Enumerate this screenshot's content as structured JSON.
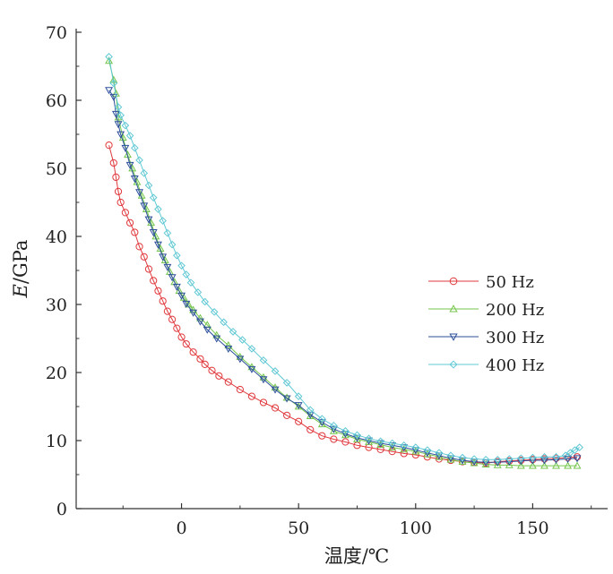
{
  "chart_data": {
    "type": "line",
    "xlabel": "温度/℃",
    "ylabel": {
      "italic": "E",
      "rest": "/GPa"
    },
    "xlim": [
      -45,
      182
    ],
    "ylim": [
      0,
      70
    ],
    "x_ticks": [
      0,
      50,
      100,
      150
    ],
    "y_ticks": [
      0,
      10,
      20,
      30,
      40,
      50,
      60,
      70
    ],
    "grid": false,
    "legend_position": "right",
    "series": [
      {
        "name": "50 Hz",
        "color": "#e0383c",
        "marker": "circle",
        "points": [
          [
            -31,
            53.4
          ],
          [
            -29,
            50.8
          ],
          [
            -28,
            48.7
          ],
          [
            -27,
            46.6
          ],
          [
            -26,
            45
          ],
          [
            -24,
            43.5
          ],
          [
            -22,
            42
          ],
          [
            -20,
            40.6
          ],
          [
            -18,
            38.5
          ],
          [
            -16,
            37
          ],
          [
            -14,
            35.2
          ],
          [
            -12,
            33.5
          ],
          [
            -10,
            32
          ],
          [
            -8,
            30.5
          ],
          [
            -6,
            29
          ],
          [
            -4,
            27.8
          ],
          [
            -2,
            26.5
          ],
          [
            0,
            25.2
          ],
          [
            2,
            24.2
          ],
          [
            5,
            23
          ],
          [
            8,
            22
          ],
          [
            10,
            21.2
          ],
          [
            13,
            20.3
          ],
          [
            16,
            19.5
          ],
          [
            20,
            18.6
          ],
          [
            25,
            17.5
          ],
          [
            30,
            16.5
          ],
          [
            35,
            15.6
          ],
          [
            40,
            14.8
          ],
          [
            45,
            13.7
          ],
          [
            50,
            12.8
          ],
          [
            55,
            11.6
          ],
          [
            60,
            10.7
          ],
          [
            65,
            10.2
          ],
          [
            70,
            9.8
          ],
          [
            75,
            9.3
          ],
          [
            80,
            9.0
          ],
          [
            85,
            8.7
          ],
          [
            90,
            8.4
          ],
          [
            95,
            8.1
          ],
          [
            100,
            7.9
          ],
          [
            105,
            7.6
          ],
          [
            110,
            7.3
          ],
          [
            115,
            7.1
          ],
          [
            120,
            6.9
          ],
          [
            125,
            6.8
          ],
          [
            130,
            6.7
          ],
          [
            135,
            6.9
          ],
          [
            140,
            7.0
          ],
          [
            145,
            7.1
          ],
          [
            150,
            7.2
          ],
          [
            155,
            7.3
          ],
          [
            160,
            7.4
          ],
          [
            165,
            7.5
          ],
          [
            169,
            7.6
          ]
        ]
      },
      {
        "name": "200 Hz",
        "color": "#74c64c",
        "marker": "triangle-up",
        "points": [
          [
            -31,
            65.8
          ],
          [
            -29,
            63
          ],
          [
            -28,
            61
          ],
          [
            -27,
            57.5
          ],
          [
            -25,
            54.5
          ],
          [
            -23,
            52
          ],
          [
            -21,
            50
          ],
          [
            -19,
            48
          ],
          [
            -17,
            46
          ],
          [
            -15,
            44
          ],
          [
            -13,
            42
          ],
          [
            -11,
            40
          ],
          [
            -9,
            38.2
          ],
          [
            -7,
            36.5
          ],
          [
            -5,
            34.8
          ],
          [
            -3,
            33.3
          ],
          [
            -1,
            32
          ],
          [
            1,
            31
          ],
          [
            3,
            30
          ],
          [
            5,
            29.2
          ],
          [
            8,
            28
          ],
          [
            11,
            27
          ],
          [
            15,
            25.5
          ],
          [
            20,
            24
          ],
          [
            25,
            22.3
          ],
          [
            30,
            20.8
          ],
          [
            35,
            19.3
          ],
          [
            40,
            17.8
          ],
          [
            45,
            16.3
          ],
          [
            50,
            15
          ],
          [
            55,
            13.6
          ],
          [
            60,
            12.4
          ],
          [
            65,
            11.4
          ],
          [
            70,
            10.8
          ],
          [
            75,
            10.2
          ],
          [
            80,
            9.8
          ],
          [
            85,
            9.4
          ],
          [
            90,
            9.0
          ],
          [
            95,
            8.7
          ],
          [
            100,
            8.4
          ],
          [
            105,
            8.0
          ],
          [
            110,
            7.6
          ],
          [
            115,
            7.2
          ],
          [
            120,
            6.9
          ],
          [
            125,
            6.7
          ],
          [
            130,
            6.5
          ],
          [
            135,
            6.4
          ],
          [
            140,
            6.4
          ],
          [
            145,
            6.3
          ],
          [
            150,
            6.3
          ],
          [
            155,
            6.3
          ],
          [
            160,
            6.3
          ],
          [
            165,
            6.3
          ],
          [
            169,
            6.3
          ]
        ]
      },
      {
        "name": "300 Hz",
        "color": "#2c4f9a",
        "marker": "triangle-down",
        "points": [
          [
            -31,
            61.5
          ],
          [
            -29,
            60.5
          ],
          [
            -28,
            58
          ],
          [
            -27,
            56.5
          ],
          [
            -26,
            55
          ],
          [
            -24,
            53
          ],
          [
            -22,
            50.5
          ],
          [
            -20,
            48.5
          ],
          [
            -18,
            46.5
          ],
          [
            -16,
            44.5
          ],
          [
            -14,
            42.5
          ],
          [
            -12,
            40.6
          ],
          [
            -10,
            38.8
          ],
          [
            -8,
            37
          ],
          [
            -6,
            35.5
          ],
          [
            -4,
            34
          ],
          [
            -2,
            32.6
          ],
          [
            0,
            31.3
          ],
          [
            2,
            30.1
          ],
          [
            5,
            28.8
          ],
          [
            8,
            27.5
          ],
          [
            11,
            26.3
          ],
          [
            15,
            25
          ],
          [
            20,
            23.5
          ],
          [
            25,
            22
          ],
          [
            30,
            20.5
          ],
          [
            35,
            19
          ],
          [
            40,
            17.5
          ],
          [
            45,
            16.2
          ],
          [
            50,
            15.2
          ],
          [
            55,
            13.8
          ],
          [
            60,
            12.7
          ],
          [
            65,
            11.7
          ],
          [
            70,
            11.0
          ],
          [
            75,
            10.4
          ],
          [
            80,
            10.0
          ],
          [
            85,
            9.6
          ],
          [
            90,
            9.3
          ],
          [
            95,
            9.0
          ],
          [
            100,
            8.6
          ],
          [
            105,
            8.2
          ],
          [
            110,
            7.8
          ],
          [
            115,
            7.4
          ],
          [
            120,
            7.1
          ],
          [
            125,
            6.9
          ],
          [
            130,
            6.8
          ],
          [
            135,
            6.8
          ],
          [
            140,
            6.9
          ],
          [
            145,
            7.0
          ],
          [
            150,
            7.1
          ],
          [
            155,
            7.1
          ],
          [
            160,
            7.2
          ],
          [
            165,
            7.3
          ],
          [
            169,
            7.4
          ]
        ]
      },
      {
        "name": "400 Hz",
        "color": "#5fc8d4",
        "marker": "diamond",
        "points": [
          [
            -31,
            66.4
          ],
          [
            -29,
            62.5
          ],
          [
            -27,
            59
          ],
          [
            -26,
            57.8
          ],
          [
            -24,
            56.3
          ],
          [
            -22,
            54.8
          ],
          [
            -20,
            53
          ],
          [
            -18,
            51.2
          ],
          [
            -16,
            49.3
          ],
          [
            -14,
            47.5
          ],
          [
            -12,
            45.7
          ],
          [
            -10,
            44
          ],
          [
            -8,
            42.3
          ],
          [
            -6,
            40.5
          ],
          [
            -4,
            38.8
          ],
          [
            -2,
            37.2
          ],
          [
            0,
            35.7
          ],
          [
            2,
            34.4
          ],
          [
            4,
            33.2
          ],
          [
            7,
            31.8
          ],
          [
            10,
            30.4
          ],
          [
            14,
            28.9
          ],
          [
            18,
            27.4
          ],
          [
            22,
            26
          ],
          [
            26,
            24.8
          ],
          [
            30,
            23.5
          ],
          [
            35,
            21.8
          ],
          [
            40,
            20.2
          ],
          [
            45,
            18.5
          ],
          [
            50,
            16.5
          ],
          [
            55,
            14.5
          ],
          [
            60,
            13.2
          ],
          [
            65,
            12.2
          ],
          [
            70,
            11.4
          ],
          [
            75,
            10.8
          ],
          [
            80,
            10.3
          ],
          [
            85,
            9.9
          ],
          [
            90,
            9.6
          ],
          [
            95,
            9.3
          ],
          [
            100,
            9.0
          ],
          [
            105,
            8.6
          ],
          [
            110,
            8.2
          ],
          [
            115,
            7.8
          ],
          [
            120,
            7.5
          ],
          [
            125,
            7.3
          ],
          [
            130,
            7.2
          ],
          [
            135,
            7.2
          ],
          [
            140,
            7.3
          ],
          [
            145,
            7.4
          ],
          [
            150,
            7.5
          ],
          [
            155,
            7.6
          ],
          [
            160,
            7.6
          ],
          [
            164,
            7.8
          ],
          [
            166,
            8.2
          ],
          [
            168,
            8.6
          ],
          [
            170,
            9.0
          ]
        ]
      }
    ]
  }
}
